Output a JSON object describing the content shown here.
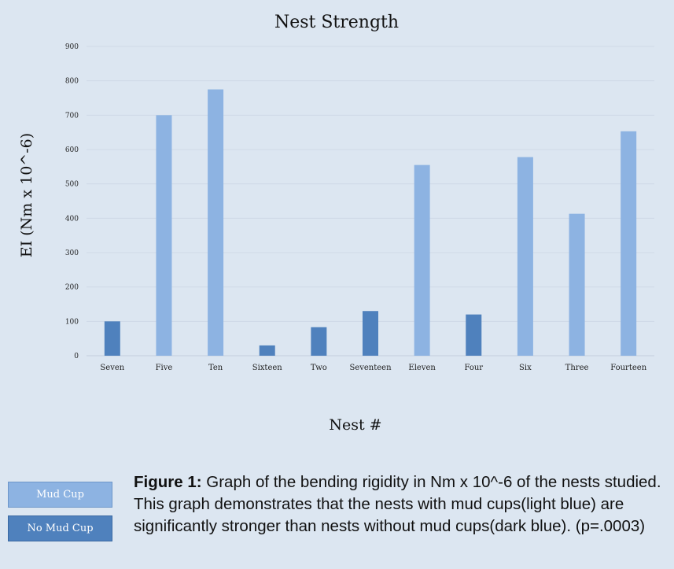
{
  "chart_data": {
    "type": "bar",
    "title": "Nest Strength",
    "xlabel": "Nest #",
    "ylabel": "EI (Nm x 10^-6)",
    "ylim": [
      0,
      900
    ],
    "yticks": [
      0,
      100,
      200,
      300,
      400,
      500,
      600,
      700,
      800,
      900
    ],
    "grid": true,
    "categories": [
      "Seven",
      "Five",
      "Ten",
      "Sixteen",
      "Two",
      "Seventeen",
      "Eleven",
      "Four",
      "Six",
      "Three",
      "Fourteen"
    ],
    "values": [
      100,
      700,
      775,
      30,
      83,
      130,
      555,
      120,
      578,
      413,
      653
    ],
    "groups": [
      "No Mud Cup",
      "Mud Cup",
      "Mud Cup",
      "No Mud Cup",
      "No Mud Cup",
      "No Mud Cup",
      "Mud Cup",
      "No Mud Cup",
      "Mud Cup",
      "Mud Cup",
      "Mud Cup"
    ],
    "colors": {
      "Mud Cup": "#8db3e2",
      "No Mud Cup": "#4f81bd"
    }
  },
  "legend": {
    "mud_cup": "Mud Cup",
    "no_mud_cup": "No Mud Cup"
  },
  "caption": {
    "label": "Figure 1:",
    "text": " Graph of the bending rigidity in Nm x 10^-6 of the nests studied. This graph demonstrates that the nests with mud cups(light blue) are significantly stronger than nests without mud cups(dark blue). (p=.0003)"
  }
}
